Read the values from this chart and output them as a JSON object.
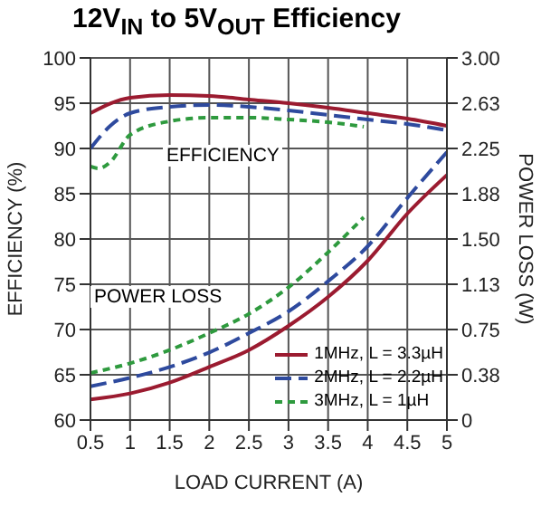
{
  "chart_data": {
    "type": "line",
    "title": "12V$_{IN}$ to 5V$_{OUT}$ Efficiency",
    "xlabel": "LOAD CURRENT (A)",
    "ylabel": "EFFICIENCY (%)",
    "y2label": "POWER LOSS (W)",
    "xlim": [
      0.5,
      5
    ],
    "xticks": [
      0.5,
      1,
      1.5,
      2,
      2.5,
      3,
      3.5,
      4,
      4.5,
      5
    ],
    "ylim": [
      60,
      100
    ],
    "yticks": [
      60,
      65,
      70,
      75,
      80,
      85,
      90,
      95,
      100
    ],
    "y2lim": [
      0,
      3
    ],
    "y2ticks": [
      0,
      {
        "value": 0.375,
        "label": "0.38"
      },
      0.75,
      {
        "value": 1.125,
        "label": "1.13"
      },
      {
        "value": 1.5,
        "label": "1.50"
      },
      {
        "value": 1.875,
        "label": "1.88"
      },
      2.25,
      {
        "value": 2.625,
        "label": "2.63"
      },
      {
        "value": 3,
        "label": "3.00"
      }
    ],
    "grid": true,
    "legend": "bottom right",
    "marker": "none",
    "annotations": [
      "EFFICIENCY",
      "POWER LOSS"
    ],
    "series": [
      {
        "name": "1MHz, L = 3.3µH",
        "color": "#9b1b30",
        "line_style": "solid",
        "x": [
          0.5,
          1,
          1.5,
          2,
          2.5,
          3,
          3.5,
          4,
          4.5,
          5
        ],
        "values": [
          93.9,
          95.6,
          95.9,
          95.8,
          95.4,
          95,
          94.5,
          93.9,
          93.3,
          92.5
        ]
      },
      {
        "name": "2MHz, L = 2.2µH",
        "color": "#2e4a9e",
        "line_style": "dashed",
        "x": [
          0.5,
          0.75,
          1,
          1.5,
          2,
          2.5,
          3,
          3.5,
          4,
          4.5,
          5
        ],
        "values": [
          90,
          92.5,
          93.9,
          94.6,
          94.8,
          94.6,
          94.2,
          93.7,
          93.2,
          92.7,
          92
        ]
      },
      {
        "name": "3MHz, L = 1µH",
        "color": "#2e9a3e",
        "line_style": "dotted",
        "x": [
          0.5,
          0.6,
          0.75,
          1,
          1.5,
          2,
          2.5,
          3,
          3.5,
          3.95
        ],
        "values": [
          88,
          87.8,
          88.5,
          91.5,
          93,
          93.4,
          93.4,
          93.2,
          92.9,
          92.4
        ]
      },
      {
        "color": "#9b1b30",
        "line_style": "solid",
        "axis": "y2",
        "x": [
          0.5,
          1,
          1.5,
          2,
          2.5,
          3,
          3.5,
          4,
          4.5,
          5
        ],
        "values": [
          0.17,
          0.22,
          0.31,
          0.44,
          0.58,
          0.78,
          1.02,
          1.32,
          1.71,
          2.03
        ]
      },
      {
        "color": "#2e4a9e",
        "line_style": "dashed",
        "axis": "y2",
        "x": [
          0.5,
          1,
          1.5,
          2,
          2.5,
          3,
          3.5,
          4,
          4.5,
          5
        ],
        "values": [
          0.28,
          0.35,
          0.44,
          0.56,
          0.72,
          0.9,
          1.15,
          1.44,
          1.84,
          2.22
        ]
      },
      {
        "color": "#2e9a3e",
        "line_style": "dotted",
        "axis": "y2",
        "x": [
          0.5,
          1,
          1.5,
          2,
          2.5,
          3,
          3.5,
          3.95
        ],
        "values": [
          0.39,
          0.47,
          0.58,
          0.72,
          0.88,
          1.1,
          1.39,
          1.68
        ]
      }
    ]
  }
}
